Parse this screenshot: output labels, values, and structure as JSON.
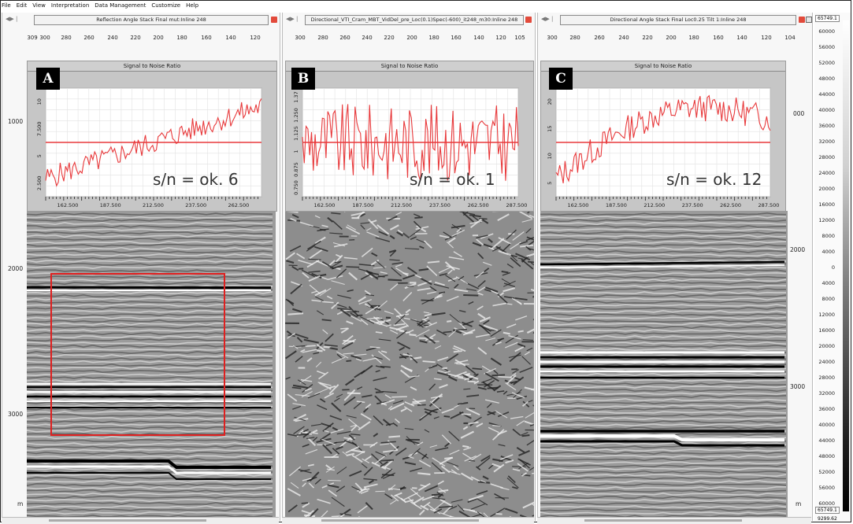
{
  "menu": [
    "File",
    "Edit",
    "View",
    "Interpretation",
    "Data Management",
    "Customize",
    "Help"
  ],
  "panels": [
    {
      "id": "A",
      "title": "Reflection Angle Stack Final mut:Inline 248",
      "trace_labels": [
        "309",
        "300",
        "280",
        "260",
        "240",
        "220",
        "200",
        "180",
        "160",
        "140",
        "120"
      ],
      "snr_header": "Signal to Noise Ratio",
      "snr_annotation": "s/n = ok. 6",
      "snr_y_ticks": [
        "2.500",
        "5",
        "7.500",
        "10"
      ],
      "snr_x_ticks": [
        "162.500",
        "187.500",
        "212.500",
        "237.500",
        "262.500"
      ]
    },
    {
      "id": "B",
      "title": "Directional_VTI_Cram_MBT_VidDel_pre_Loc(0.1)Spec(-600)_it248_m30:Inline 248",
      "trace_labels": [
        "300",
        "280",
        "260",
        "240",
        "220",
        "200",
        "180",
        "160",
        "140",
        "120",
        "105"
      ],
      "snr_header": "Signal to Noise Ratio",
      "snr_annotation": "s/n = ok. 1",
      "snr_y_ticks": [
        "0.750",
        "0.875",
        "1",
        "1.125",
        "1.250",
        "1.37"
      ],
      "snr_x_ticks": [
        "162.500",
        "187.500",
        "212.500",
        "237.500",
        "262.500",
        "287.500"
      ]
    },
    {
      "id": "C",
      "title": "Directional Angle Stack Final Loc0.25 Tilt 1:Inline 248",
      "trace_labels": [
        "300",
        "280",
        "260",
        "240",
        "220",
        "200",
        "180",
        "160",
        "140",
        "120",
        "104"
      ],
      "snr_header": "Signal to Noise Ratio",
      "snr_annotation": "s/n = ok. 12",
      "snr_y_ticks": [
        "5",
        "10",
        "15",
        "20"
      ],
      "snr_x_ticks": [
        "162.500",
        "187.500",
        "212.500",
        "237.500",
        "262.500",
        "287.500"
      ]
    }
  ],
  "depth_labels_left": [
    "1000",
    "2000",
    "3000",
    "m"
  ],
  "depth_labels_right": [
    "000",
    "2000",
    "3000",
    "m"
  ],
  "colorbar": {
    "max": "65749.1",
    "min": "65749.1",
    "bottom": "9299.62",
    "labels": [
      "60000",
      "56000",
      "52000",
      "48000",
      "44000",
      "40000",
      "36000",
      "32000",
      "28000",
      "24000",
      "20000",
      "16000",
      "12000",
      "8000",
      "4000",
      "0",
      "4000",
      "8000",
      "12000",
      "16000",
      "20000",
      "24000",
      "28000",
      "32000",
      "36000",
      "40000",
      "44000",
      "48000",
      "52000",
      "56000",
      "60000"
    ]
  },
  "colors": {
    "snr_line": "#e8393b",
    "seismic_bg": "#9a9a9a",
    "highlight_box": "#e02020"
  }
}
